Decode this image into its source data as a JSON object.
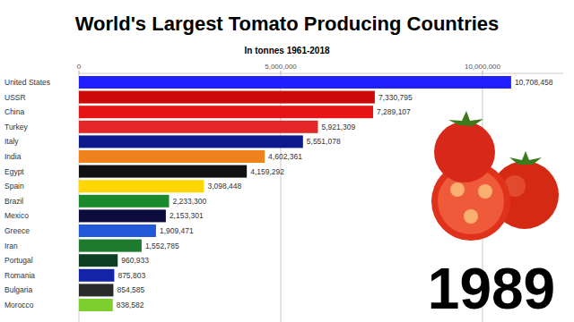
{
  "chart_data": {
    "type": "bar",
    "orientation": "horizontal",
    "title": "World's Largest Tomato Producing Countries",
    "subtitle": "In tonnes 1961-2018",
    "annotation": "1989",
    "categories": [
      "United States",
      "USSR",
      "China",
      "Turkey",
      "Italy",
      "India",
      "Egypt",
      "Spain",
      "Brazil",
      "Mexico",
      "Greece",
      "Iran",
      "Portugal",
      "Romania",
      "Bulgaria",
      "Morocco"
    ],
    "values": [
      10708458,
      7330795,
      7289107,
      5921309,
      5551078,
      4602361,
      4159292,
      3098448,
      2233300,
      2153301,
      1909471,
      1552785,
      960933,
      875803,
      854585,
      838582
    ],
    "value_labels": [
      "10,708,458",
      "7,330,795",
      "7,289,107",
      "5,921,309",
      "5,551,078",
      "4,602,361",
      "4,159,292",
      "3,098,448",
      "2,233,300",
      "2,153,301",
      "1,909,471",
      "1,552,785",
      "960,933",
      "875,803",
      "854,585",
      "838,582"
    ],
    "colors": [
      "#1f1fff",
      "#cc0a0a",
      "#e51515",
      "#e32626",
      "#0d1a8c",
      "#f0821e",
      "#111111",
      "#ffd600",
      "#1b8a2c",
      "#0b0b3c",
      "#2358d8",
      "#1d7a2e",
      "#0e3f22",
      "#1424a8",
      "#2a2a2a",
      "#7ccf2e"
    ],
    "xlim": [
      0,
      12000000
    ],
    "xticks": [
      0,
      {
        "value": 5000000,
        "label": "5,000,000"
      },
      {
        "value": 10000000,
        "label": "10,000,000"
      }
    ],
    "grid": true,
    "data_labels": true
  }
}
